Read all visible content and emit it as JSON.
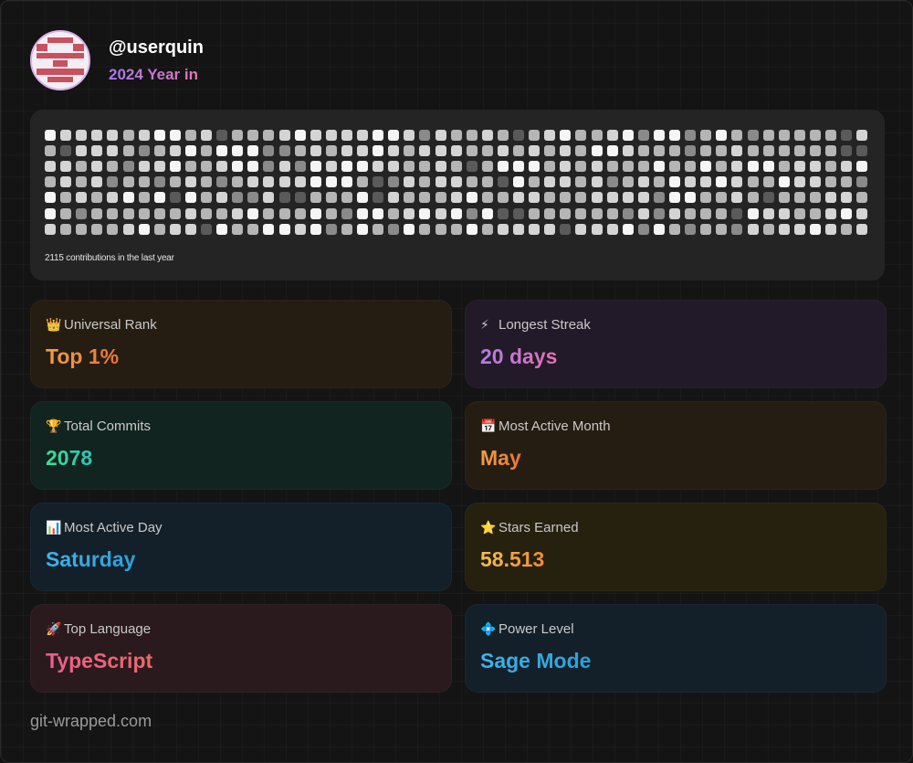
{
  "profile": {
    "username": "@userquin",
    "subtitle": "2024 Year in"
  },
  "contributions": {
    "summary": "2115 contributions in the last year",
    "weeks": 53,
    "days_per_week": 7,
    "intensity_colors": [
      "#5a5a5a",
      "#8a8a8a",
      "#b5b5b5",
      "#d4d4d4",
      "#f5f5f5"
    ]
  },
  "stats": [
    {
      "icon": "crown-icon",
      "glyph": "👑",
      "label": "Universal Rank",
      "value": "Top 1%",
      "bg": "#261d12",
      "from": "#f0a045",
      "to": "#e8753a"
    },
    {
      "icon": "lightning-icon",
      "glyph": "⚡",
      "label": "Longest Streak",
      "value": "20 days",
      "bg": "#221a28",
      "from": "#b07ce8",
      "to": "#e66fb0"
    },
    {
      "icon": "trophy-icon",
      "glyph": "🏆",
      "label": "Total Commits",
      "value": "2078",
      "bg": "#12241f",
      "from": "#3ddc97",
      "to": "#2ec4b6"
    },
    {
      "icon": "calendar-icon",
      "glyph": "📅",
      "label": "Most Active Month",
      "value": "May",
      "bg": "#261d12",
      "from": "#f0a045",
      "to": "#e8753a"
    },
    {
      "icon": "chart-icon",
      "glyph": "📊",
      "label": "Most Active Day",
      "value": "Saturday",
      "bg": "#13202a",
      "from": "#3fb3ea",
      "to": "#2d9fd9"
    },
    {
      "icon": "star-icon",
      "glyph": "⭐",
      "label": "Stars Earned",
      "value": "58.513",
      "bg": "#26200f",
      "from": "#f2c14e",
      "to": "#ef8c3a"
    },
    {
      "icon": "rocket-icon",
      "glyph": "🚀",
      "label": "Top Language",
      "value": "TypeScript",
      "bg": "#2a1a1e",
      "from": "#ef5d8f",
      "to": "#ea6a6a"
    },
    {
      "icon": "diamond-icon",
      "glyph": "💠",
      "label": "Power Level",
      "value": "Sage Mode",
      "bg": "#13202a",
      "from": "#3fb3ea",
      "to": "#2d9fd9"
    }
  ],
  "footer": {
    "site": "git-wrapped.com"
  }
}
